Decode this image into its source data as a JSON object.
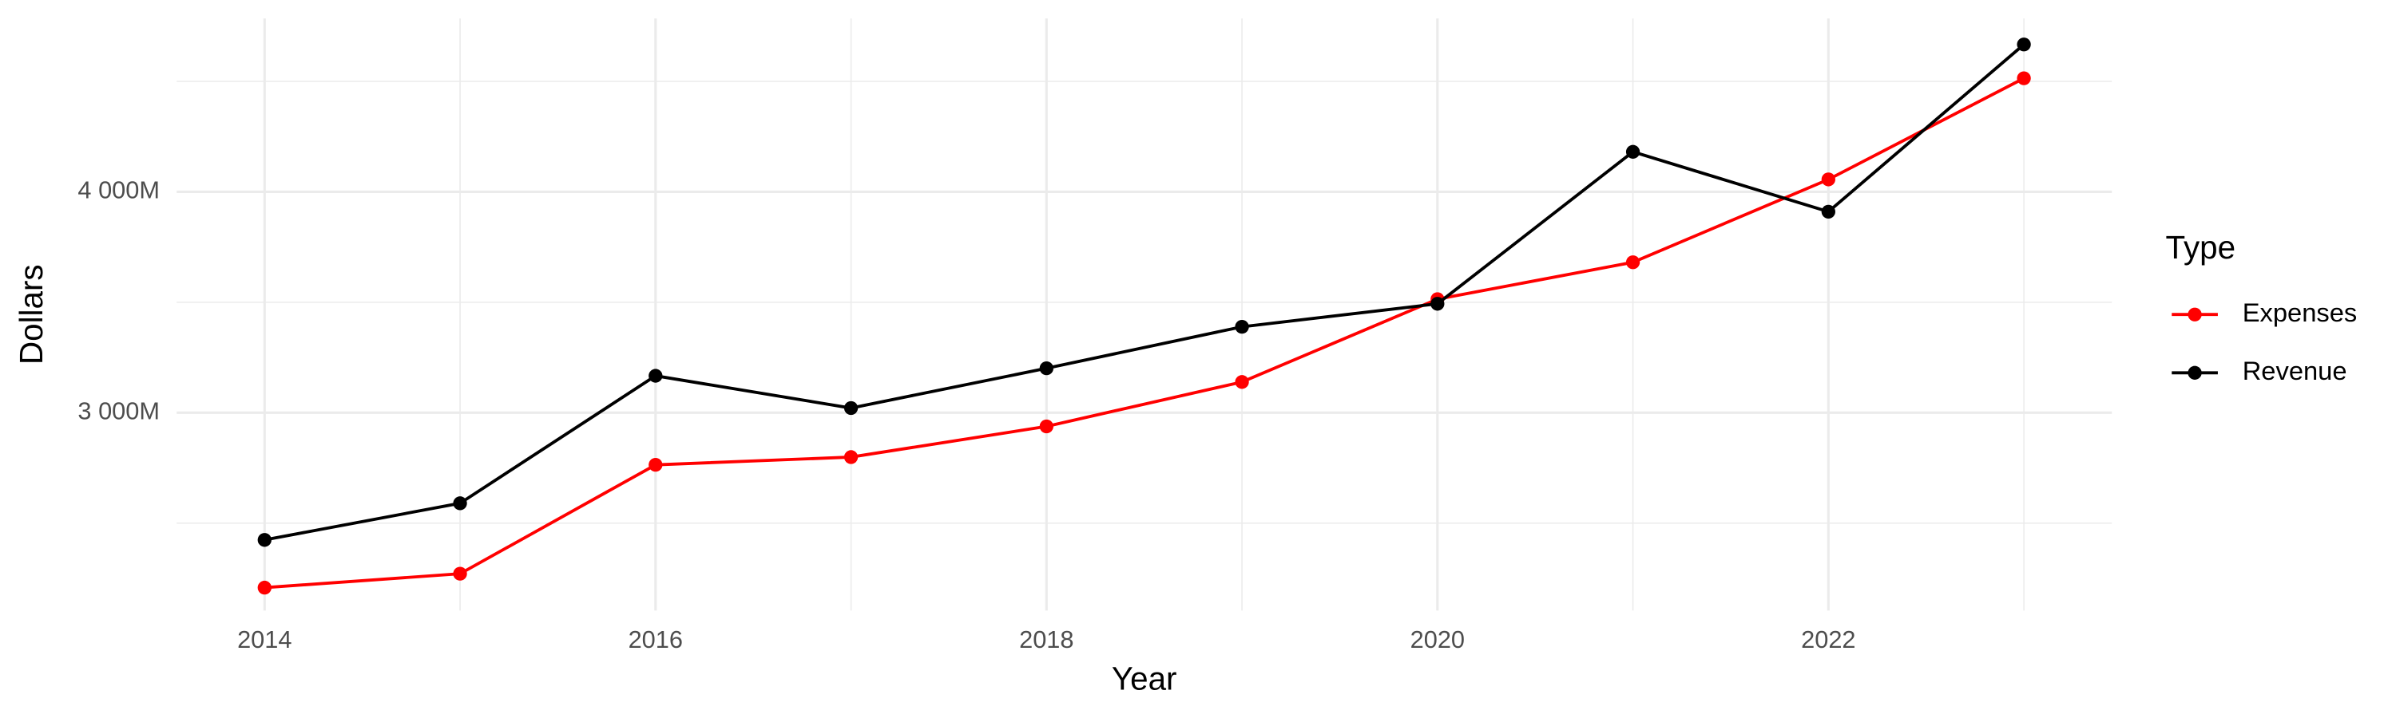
{
  "chart_data": {
    "type": "line",
    "x_label": "Year",
    "y_label": "Dollars",
    "legend_title": "Type",
    "legend_position": "right",
    "x": [
      2014,
      2015,
      2016,
      2017,
      2018,
      2019,
      2020,
      2021,
      2022,
      2023
    ],
    "series": [
      {
        "name": "Expenses",
        "color": "#ff0000",
        "values": [
          2208,
          2271,
          2764,
          2799,
          2938,
          3139,
          3514,
          3681,
          4056,
          4514
        ]
      },
      {
        "name": "Revenue",
        "color": "#000000",
        "values": [
          2424,
          2590,
          3167,
          3021,
          3201,
          3389,
          3493,
          4181,
          3910,
          4667
        ]
      }
    ],
    "xlim": [
      2013.55,
      2023.45
    ],
    "xticks": [
      2014,
      2016,
      2018,
      2020,
      2022
    ],
    "ylim": [
      2104,
      4785
    ],
    "yticks": [
      {
        "value": 3000,
        "label": "3 000M"
      },
      {
        "value": 4000,
        "label": "4 000M"
      }
    ],
    "grid": true
  }
}
